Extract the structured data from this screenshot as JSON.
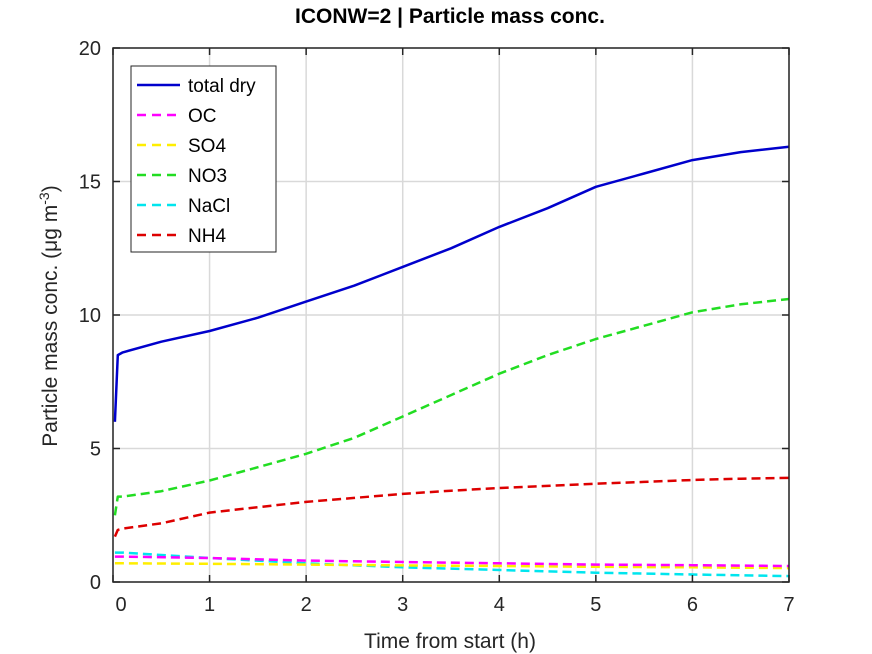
{
  "chart_data": {
    "type": "line",
    "title": "ICONW=2 | Particle mass conc.",
    "xlabel": "Time from start (h)",
    "ylabel_main": "Particle mass conc. (μg m",
    "ylabel_sup": "-3",
    "ylabel_close": ")",
    "xlim": [
      0,
      7
    ],
    "ylim": [
      0,
      20
    ],
    "xticks": [
      0,
      1,
      2,
      3,
      4,
      5,
      6,
      7
    ],
    "yticks": [
      0,
      5,
      10,
      15,
      20
    ],
    "xtick_labels": [
      "0",
      "1",
      "2",
      "3",
      "4",
      "5",
      "6",
      "7"
    ],
    "ytick_labels": [
      "0",
      "5",
      "10",
      "15",
      "20"
    ],
    "grid": true,
    "legend_position": "top-left",
    "series": [
      {
        "name": "total dry",
        "color": "#0000cc",
        "dash": "solid",
        "x": [
          0.02,
          0.05,
          0.1,
          0.5,
          1,
          1.5,
          2,
          2.5,
          3,
          3.5,
          4,
          4.5,
          5,
          5.5,
          6,
          6.5,
          7
        ],
        "y": [
          6.0,
          8.5,
          8.6,
          9.0,
          9.4,
          9.9,
          10.5,
          11.1,
          11.8,
          12.5,
          13.3,
          14.0,
          14.8,
          15.3,
          15.8,
          16.1,
          16.3
        ]
      },
      {
        "name": "OC",
        "color": "#ff00ff",
        "dash": "dashed",
        "x": [
          0.02,
          0.1,
          1,
          2,
          3,
          4,
          5,
          6,
          7
        ],
        "y": [
          0.95,
          0.95,
          0.9,
          0.8,
          0.75,
          0.7,
          0.65,
          0.63,
          0.6
        ]
      },
      {
        "name": "SO4",
        "color": "#ffee00",
        "dash": "dashed",
        "x": [
          0.02,
          0.1,
          1,
          2,
          3,
          4,
          5,
          6,
          7
        ],
        "y": [
          0.7,
          0.7,
          0.68,
          0.65,
          0.62,
          0.6,
          0.57,
          0.55,
          0.52
        ]
      },
      {
        "name": "NO3",
        "color": "#22dd22",
        "dash": "dashed",
        "x": [
          0.02,
          0.05,
          0.1,
          0.5,
          1,
          1.5,
          2,
          2.5,
          3,
          3.5,
          4,
          4.5,
          5,
          5.5,
          6,
          6.5,
          7
        ],
        "y": [
          2.5,
          3.2,
          3.2,
          3.4,
          3.8,
          4.3,
          4.8,
          5.4,
          6.2,
          7.0,
          7.8,
          8.5,
          9.1,
          9.6,
          10.1,
          10.4,
          10.6
        ]
      },
      {
        "name": "NaCl",
        "color": "#00e5ee",
        "dash": "dashed",
        "x": [
          0.02,
          0.1,
          1,
          2,
          3,
          4,
          5,
          6,
          7
        ],
        "y": [
          1.1,
          1.1,
          0.9,
          0.7,
          0.55,
          0.45,
          0.35,
          0.28,
          0.22
        ]
      },
      {
        "name": "NH4",
        "color": "#dd0000",
        "dash": "dashed",
        "x": [
          0.02,
          0.05,
          0.1,
          0.5,
          1,
          1.5,
          2,
          2.5,
          3,
          3.5,
          4,
          4.5,
          5,
          5.5,
          6,
          6.5,
          7
        ],
        "y": [
          1.7,
          1.95,
          2.0,
          2.2,
          2.6,
          2.8,
          3.0,
          3.15,
          3.3,
          3.42,
          3.52,
          3.6,
          3.68,
          3.75,
          3.82,
          3.87,
          3.9
        ]
      }
    ]
  }
}
